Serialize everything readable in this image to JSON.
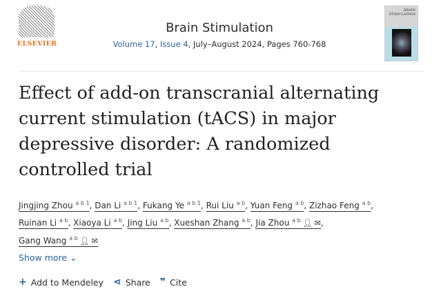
{
  "header": {
    "publisher": "ELSEVIER",
    "journal": "Brain Stimulation",
    "volume": "Volume 17",
    "issue": "Issue 4",
    "date_pages": ", July–August 2024, Pages 760-768",
    "cover_text": "BRAIN STIMULATION"
  },
  "article": {
    "title": "Effect of add-on transcranial alternating current stimulation (tACS) in major depressive disorder: A randomized controlled trial",
    "authors": [
      {
        "name": "Jingjing Zhou",
        "sup": "a b 1"
      },
      {
        "name": "Dan Li",
        "sup": "a b 1"
      },
      {
        "name": "Fukang Ye",
        "sup": "a b 1"
      },
      {
        "name": "Rui Liu",
        "sup": "a b"
      },
      {
        "name": "Yuan Feng",
        "sup": "a b"
      },
      {
        "name": "Zizhao Feng",
        "sup": "a b"
      },
      {
        "name": "Ruinan Li",
        "sup": "a b"
      },
      {
        "name": "Xiaoya Li",
        "sup": "a b"
      },
      {
        "name": "Jing Liu",
        "sup": "a b"
      },
      {
        "name": "Xueshan Zhang",
        "sup": "a b"
      },
      {
        "name": "Jia Zhou",
        "sup": "a b"
      },
      {
        "name": "Gang Wang",
        "sup": "a b"
      }
    ]
  },
  "show_more": "Show more",
  "actions": {
    "mendeley": "Add to Mendeley",
    "share": "Share",
    "cite": "Cite"
  },
  "colors": {
    "link": "#2a6496",
    "elsevier": "#e9711c"
  }
}
